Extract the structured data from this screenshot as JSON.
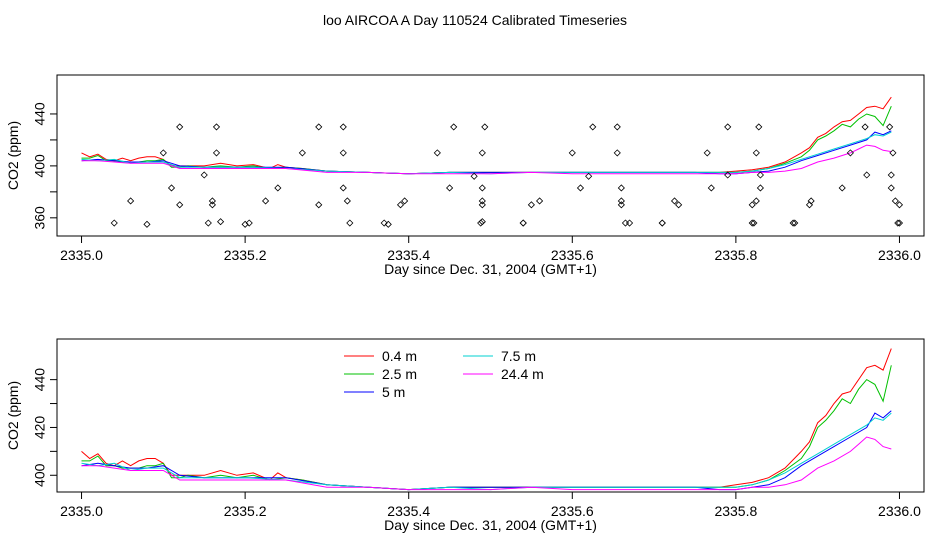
{
  "title": "loo AIRCOA A  Day 110524  Calibrated Timeseries",
  "chart_data": [
    {
      "type": "scatter+line",
      "ylabel": "CO2 (ppm)",
      "xlabel": "Day since Dec. 31, 2004 (GMT+1)",
      "xlim": [
        2334.97,
        2336.03
      ],
      "ylim": [
        346,
        470
      ],
      "x_ticks": [
        "2335.0",
        "2335.2",
        "2335.4",
        "2335.6",
        "2335.8",
        "2336.0"
      ],
      "x_tick_values": [
        2335.0,
        2335.2,
        2335.4,
        2335.6,
        2335.8,
        2336.0
      ],
      "y_ticks": [
        "360",
        "400",
        "440"
      ],
      "y_tick_values": [
        360,
        400,
        440
      ],
      "y_minor_ticks": [
        380,
        420
      ],
      "diamond_points": [
        [
          2335.08,
          355
        ],
        [
          2335.11,
          383
        ],
        [
          2335.12,
          370
        ],
        [
          2335.15,
          393
        ],
        [
          2335.16,
          370
        ],
        [
          2335.17,
          357
        ],
        [
          2335.2,
          355
        ],
        [
          2335.24,
          383
        ],
        [
          2335.29,
          370
        ],
        [
          2335.32,
          383
        ],
        [
          2335.37,
          356
        ],
        [
          2335.39,
          370
        ],
        [
          2335.45,
          383
        ],
        [
          2335.48,
          392
        ],
        [
          2335.49,
          357
        ],
        [
          2335.49,
          370
        ],
        [
          2335.49,
          383
        ],
        [
          2335.54,
          356
        ],
        [
          2335.55,
          370
        ],
        [
          2335.61,
          383
        ],
        [
          2335.62,
          392
        ],
        [
          2335.66,
          383
        ],
        [
          2335.66,
          370
        ],
        [
          2335.67,
          356
        ],
        [
          2335.71,
          356
        ],
        [
          2335.73,
          370
        ],
        [
          2335.77,
          383
        ],
        [
          2335.79,
          393
        ],
        [
          2335.82,
          356
        ],
        [
          2335.82,
          370
        ],
        [
          2335.83,
          383
        ],
        [
          2335.83,
          393
        ],
        [
          2335.87,
          356
        ],
        [
          2335.89,
          370
        ],
        [
          2335.93,
          383
        ],
        [
          2335.96,
          393
        ],
        [
          2335.99,
          383
        ],
        [
          2335.99,
          393
        ],
        [
          2336.0,
          370
        ],
        [
          2336.0,
          356
        ],
        [
          2335.04,
          356
        ],
        [
          2335.06,
          373
        ],
        [
          2335.1,
          410
        ],
        [
          2335.12,
          430
        ],
        [
          2335.155,
          356
        ],
        [
          2335.16,
          373
        ],
        [
          2335.165,
          410
        ],
        [
          2335.165,
          430
        ],
        [
          2335.205,
          356
        ],
        [
          2335.225,
          373
        ],
        [
          2335.27,
          410
        ],
        [
          2335.29,
          430
        ],
        [
          2335.32,
          410
        ],
        [
          2335.32,
          430
        ],
        [
          2335.325,
          373
        ],
        [
          2335.328,
          356
        ],
        [
          2335.375,
          355
        ],
        [
          2335.395,
          373
        ],
        [
          2335.435,
          410
        ],
        [
          2335.455,
          430
        ],
        [
          2335.488,
          356
        ],
        [
          2335.49,
          373
        ],
        [
          2335.49,
          410
        ],
        [
          2335.493,
          430
        ],
        [
          2335.54,
          356
        ],
        [
          2335.56,
          373
        ],
        [
          2335.6,
          410
        ],
        [
          2335.625,
          430
        ],
        [
          2335.655,
          430
        ],
        [
          2335.655,
          410
        ],
        [
          2335.66,
          373
        ],
        [
          2335.665,
          356
        ],
        [
          2335.71,
          356
        ],
        [
          2335.725,
          373
        ],
        [
          2335.765,
          410
        ],
        [
          2335.79,
          430
        ],
        [
          2335.822,
          356
        ],
        [
          2335.825,
          373
        ],
        [
          2335.825,
          410
        ],
        [
          2335.828,
          430
        ],
        [
          2335.872,
          356
        ],
        [
          2335.892,
          373
        ],
        [
          2335.94,
          410
        ],
        [
          2335.958,
          430
        ],
        [
          2335.988,
          430
        ],
        [
          2335.992,
          410
        ],
        [
          2335.995,
          373
        ],
        [
          2335.998,
          356
        ]
      ]
    },
    {
      "type": "line",
      "ylabel": "CO2 (ppm)",
      "xlabel": "Day since Dec. 31, 2004 (GMT+1)",
      "xlim": [
        2334.97,
        2336.03
      ],
      "ylim": [
        393,
        457
      ],
      "x_ticks": [
        "2335.0",
        "2335.2",
        "2335.4",
        "2335.6",
        "2335.8",
        "2336.0"
      ],
      "x_tick_values": [
        2335.0,
        2335.2,
        2335.4,
        2335.6,
        2335.8,
        2336.0
      ],
      "y_ticks": [
        "400",
        "420",
        "440"
      ],
      "y_tick_values": [
        400,
        420,
        440
      ],
      "y_minor_ticks": [
        410,
        430
      ],
      "legend": {
        "placement": "top-center"
      }
    }
  ],
  "series": [
    {
      "name": "0.4 m",
      "color": "#ff0000",
      "x": [
        2335.0,
        2335.01,
        2335.02,
        2335.03,
        2335.04,
        2335.05,
        2335.06,
        2335.07,
        2335.08,
        2335.09,
        2335.1,
        2335.11,
        2335.12,
        2335.13,
        2335.15,
        2335.17,
        2335.19,
        2335.21,
        2335.23,
        2335.24,
        2335.25,
        2335.27,
        2335.3,
        2335.35,
        2335.4,
        2335.45,
        2335.5,
        2335.55,
        2335.6,
        2335.65,
        2335.7,
        2335.75,
        2335.78,
        2335.8,
        2335.82,
        2335.84,
        2335.86,
        2335.88,
        2335.89,
        2335.9,
        2335.91,
        2335.92,
        2335.93,
        2335.94,
        2335.95,
        2335.96,
        2335.97,
        2335.98,
        2335.99
      ],
      "y": [
        410,
        407,
        409,
        405,
        404,
        406,
        404,
        406,
        407,
        407,
        405,
        400,
        400,
        400,
        400,
        402,
        400,
        401,
        398,
        401,
        399,
        398,
        396,
        395,
        394,
        395,
        395,
        395,
        395,
        395,
        395,
        395,
        395,
        396,
        397,
        399,
        403,
        410,
        414,
        422,
        425,
        430,
        434,
        435,
        440,
        445,
        446,
        444,
        453
      ]
    },
    {
      "name": "2.5 m",
      "color": "#00c000",
      "x": [
        2335.0,
        2335.01,
        2335.02,
        2335.03,
        2335.04,
        2335.05,
        2335.06,
        2335.07,
        2335.08,
        2335.09,
        2335.1,
        2335.11,
        2335.12,
        2335.13,
        2335.15,
        2335.17,
        2335.19,
        2335.21,
        2335.23,
        2335.25,
        2335.27,
        2335.3,
        2335.35,
        2335.4,
        2335.45,
        2335.5,
        2335.55,
        2335.6,
        2335.65,
        2335.7,
        2335.75,
        2335.78,
        2335.8,
        2335.82,
        2335.84,
        2335.86,
        2335.88,
        2335.89,
        2335.9,
        2335.91,
        2335.92,
        2335.93,
        2335.94,
        2335.95,
        2335.96,
        2335.97,
        2335.98,
        2335.99
      ],
      "y": [
        406,
        406,
        408,
        404,
        404,
        403,
        403,
        403,
        404,
        404,
        405,
        399,
        399,
        400,
        399,
        400,
        399,
        400,
        398,
        399,
        398,
        396,
        395,
        394,
        395,
        395,
        395,
        395,
        395,
        395,
        395,
        395,
        395,
        396,
        398,
        402,
        407,
        412,
        420,
        423,
        427,
        432,
        430,
        436,
        440,
        438,
        431,
        446
      ]
    },
    {
      "name": "5 m",
      "color": "#0000ff",
      "x": [
        2335.0,
        2335.02,
        2335.04,
        2335.06,
        2335.08,
        2335.1,
        2335.12,
        2335.15,
        2335.2,
        2335.25,
        2335.3,
        2335.35,
        2335.4,
        2335.45,
        2335.5,
        2335.55,
        2335.6,
        2335.65,
        2335.7,
        2335.75,
        2335.78,
        2335.8,
        2335.82,
        2335.84,
        2335.86,
        2335.88,
        2335.9,
        2335.92,
        2335.94,
        2335.96,
        2335.97,
        2335.98,
        2335.99
      ],
      "y": [
        404,
        405,
        404,
        403,
        403,
        404,
        400,
        399,
        399,
        399,
        396,
        395,
        394,
        395,
        395,
        395,
        395,
        395,
        395,
        395,
        394,
        394,
        395,
        396,
        399,
        404,
        408,
        412,
        416,
        420,
        426,
        424,
        427
      ]
    },
    {
      "name": "7.5 m",
      "color": "#00d0d0",
      "x": [
        2335.0,
        2335.02,
        2335.04,
        2335.06,
        2335.08,
        2335.1,
        2335.12,
        2335.15,
        2335.2,
        2335.25,
        2335.3,
        2335.35,
        2335.4,
        2335.45,
        2335.5,
        2335.55,
        2335.6,
        2335.65,
        2335.7,
        2335.75,
        2335.78,
        2335.8,
        2335.82,
        2335.84,
        2335.86,
        2335.88,
        2335.9,
        2335.92,
        2335.94,
        2335.96,
        2335.97,
        2335.98,
        2335.99
      ],
      "y": [
        405,
        404,
        405,
        402,
        403,
        403,
        399,
        399,
        399,
        398,
        396,
        395,
        394,
        395,
        394,
        395,
        395,
        395,
        395,
        395,
        395,
        395,
        396,
        398,
        401,
        405,
        409,
        413,
        417,
        421,
        424,
        423,
        426
      ]
    },
    {
      "name": "24.4 m",
      "color": "#ff00ff",
      "x": [
        2335.0,
        2335.02,
        2335.04,
        2335.06,
        2335.08,
        2335.1,
        2335.12,
        2335.15,
        2335.2,
        2335.25,
        2335.3,
        2335.35,
        2335.4,
        2335.45,
        2335.5,
        2335.55,
        2335.6,
        2335.65,
        2335.7,
        2335.75,
        2335.78,
        2335.8,
        2335.82,
        2335.84,
        2335.86,
        2335.88,
        2335.9,
        2335.92,
        2335.94,
        2335.95,
        2335.96,
        2335.97,
        2335.98,
        2335.99
      ],
      "y": [
        404,
        404,
        403,
        402,
        402,
        402,
        398,
        398,
        398,
        398,
        395,
        395,
        394,
        394,
        394,
        395,
        394,
        394,
        394,
        394,
        394,
        394,
        395,
        395,
        396,
        398,
        403,
        406,
        410,
        413,
        416,
        415,
        412,
        411
      ]
    }
  ],
  "legend_labels": [
    "0.4 m",
    "2.5 m",
    "5 m",
    "7.5 m",
    "24.4 m"
  ]
}
